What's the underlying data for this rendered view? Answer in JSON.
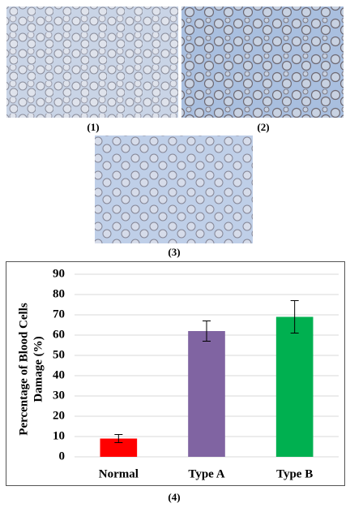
{
  "panels": [
    "(1)",
    "(2)",
    "(3)"
  ],
  "caption": "(4)",
  "chart_data": {
    "type": "bar",
    "y_label": [
      "Percentage of Blood Cells",
      "Damage (%)"
    ],
    "categories": [
      "Normal",
      "Type A",
      "Type B"
    ],
    "values": [
      9,
      62,
      69
    ],
    "errors": [
      2,
      5,
      8
    ],
    "colors": [
      "#ff0000",
      "#8064a2",
      "#00b050"
    ],
    "ylim": [
      0,
      90
    ],
    "yticks": [
      0,
      10,
      20,
      30,
      40,
      50,
      60,
      70,
      80,
      90
    ],
    "grid": true
  }
}
